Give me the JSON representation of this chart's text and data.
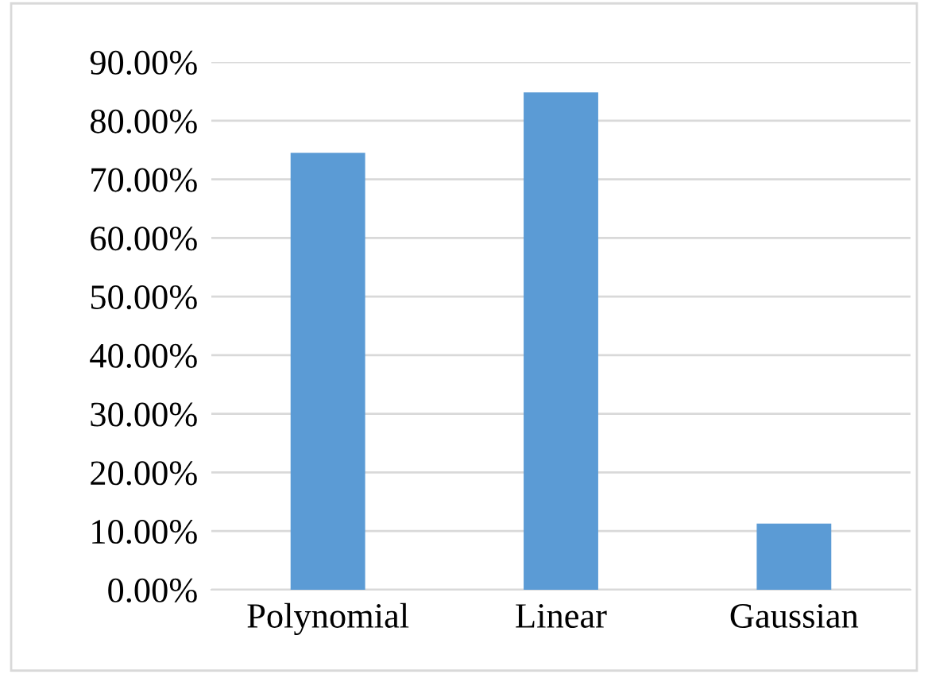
{
  "chart_data": {
    "type": "bar",
    "categories": [
      "Polynomial",
      "Linear",
      "Gaussian"
    ],
    "values": [
      74.5,
      84.8,
      11.3
    ],
    "color": "#5b9bd5",
    "ylim": [
      0,
      90
    ],
    "yticks": [
      {
        "value": 0,
        "label": "0.00%"
      },
      {
        "value": 10,
        "label": "10.00%"
      },
      {
        "value": 20,
        "label": "20.00%"
      },
      {
        "value": 30,
        "label": "30.00%"
      },
      {
        "value": 40,
        "label": "40.00%"
      },
      {
        "value": 50,
        "label": "50.00%"
      },
      {
        "value": 60,
        "label": "60.00%"
      },
      {
        "value": 70,
        "label": "70.00%"
      },
      {
        "value": 80,
        "label": "80.00%"
      },
      {
        "value": 90,
        "label": "90.00%"
      }
    ],
    "grid": "y"
  }
}
